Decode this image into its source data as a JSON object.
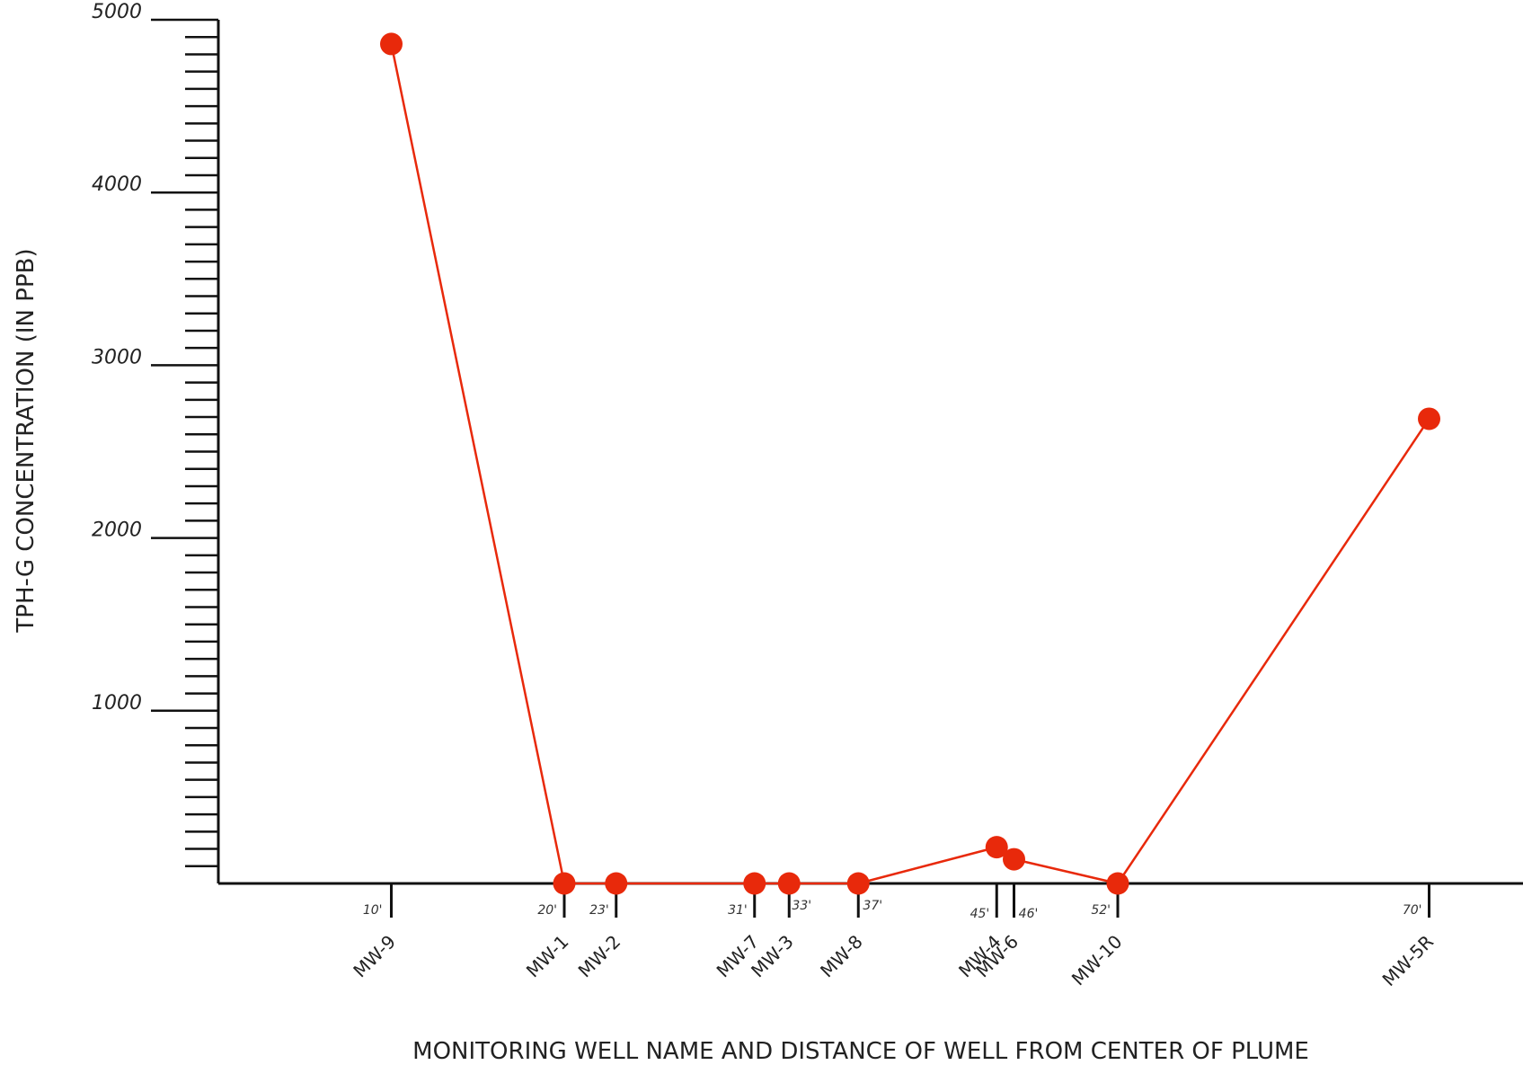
{
  "chart_data": {
    "type": "line",
    "xlabel": "MONITORING WELL NAME AND DISTANCE OF WELL FROM CENTER OF PLUME",
    "ylabel": "TPH-G CONCENTRATION (IN PPB)",
    "ylim": [
      0,
      5000
    ],
    "xlim": [
      0,
      76
    ],
    "yticks": [
      1000,
      2000,
      3000,
      4000,
      5000
    ],
    "ytick_labels": [
      "1000",
      "2000",
      "3000",
      "4000",
      "5000"
    ],
    "y_minor_step": 100,
    "grid": false,
    "legend": "none",
    "line_color": "#e8290b",
    "axis_color": "#111111",
    "points": [
      {
        "well": "MW-9",
        "distance": 10,
        "distance_label": "10'",
        "value": 4860
      },
      {
        "well": "MW-1",
        "distance": 20,
        "distance_label": "20'",
        "value": 0
      },
      {
        "well": "MW-2",
        "distance": 23,
        "distance_label": "23'",
        "value": 0
      },
      {
        "well": "MW-7",
        "distance": 31,
        "distance_label": "31'",
        "value": 0
      },
      {
        "well": "MW-3",
        "distance": 33,
        "distance_label": "33'",
        "value": 0
      },
      {
        "well": "MW-8",
        "distance": 37,
        "distance_label": "37'",
        "value": 0
      },
      {
        "well": "MW-4",
        "distance": 45,
        "distance_label": "45'",
        "value": 210
      },
      {
        "well": "MW-6",
        "distance": 46,
        "distance_label": "46'",
        "value": 140
      },
      {
        "well": "MW-10",
        "distance": 52,
        "distance_label": "52'",
        "value": 0
      },
      {
        "well": "MW-5R",
        "distance": 70,
        "distance_label": "70'",
        "value": 2690
      }
    ]
  }
}
